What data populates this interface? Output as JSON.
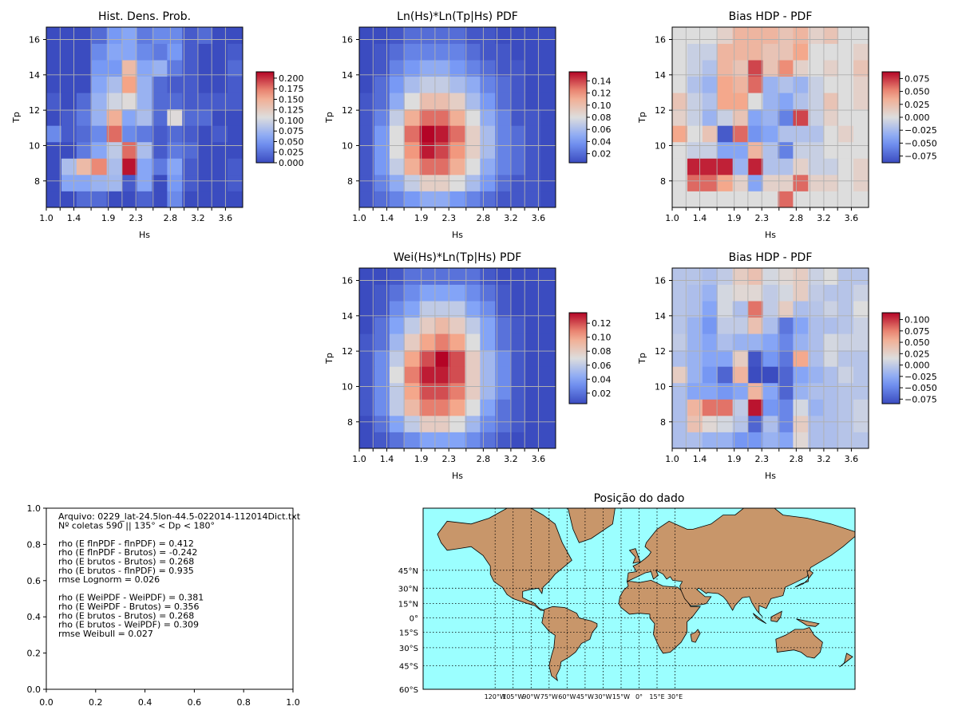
{
  "axes_labels": {
    "x": "Hs",
    "y": "Tp"
  },
  "text_panel": {
    "lines": [
      "Arquivo: 0229_lat-24.5lon-44.5-022014-112014Dict.txt",
      "Nº coletas 590 || 135° < Dp < 180°",
      "",
      "rho (E flnPDF - flnPDF) = 0.412",
      "rho (E flnPDF - Brutos) = -0.242",
      "rho (E brutos - Brutos) = 0.268",
      "rho (E brutos - flnPDF) = 0.935",
      "rmse Lognorm = 0.026",
      "",
      "rho (E WeiPDF - WeiPDF) = 0.381",
      "rho (E WeiPDF - Brutos) = 0.356",
      "rho (E brutos - Brutos) = 0.268",
      "rho (E brutos - WeiPDF) = 0.309",
      "rmse Weibull = 0.027"
    ],
    "xticks": [
      "0.0",
      "0.2",
      "0.4",
      "0.6",
      "0.8",
      "1.0"
    ],
    "yticks": [
      "0.0",
      "0.2",
      "0.4",
      "0.6",
      "0.8",
      "1.0"
    ]
  },
  "map": {
    "title": "Posição do dado",
    "lat_labels": [
      "45°N",
      "30°N",
      "15°N",
      "0°",
      "15°S",
      "30°S",
      "45°S",
      "60°S"
    ],
    "lat_values": [
      45,
      30,
      15,
      0,
      -15,
      -30,
      -45,
      -60
    ],
    "lon_labels": [
      "120°W",
      "105°W",
      "90°W",
      "75°W",
      "60°W",
      "45°W",
      "30°W",
      "15°W",
      "0°",
      "15°E",
      "30°E"
    ],
    "lon_values": [
      -120,
      -105,
      -90,
      -75,
      -60,
      -45,
      -30,
      -15,
      0,
      15,
      30
    ],
    "ocean_color": "#9bffff",
    "land_color": "#c8966a"
  },
  "chart_data": [
    {
      "type": "heatmap",
      "title": "Hist. Dens. Prob.",
      "xlabel": "Hs",
      "ylabel": "Tp",
      "xticks": [
        "1.0",
        "1.4",
        "1.9",
        "2.3",
        "2.8",
        "3.2",
        "3.6"
      ],
      "yticks": [
        "8",
        "10",
        "12",
        "14",
        "16"
      ],
      "ylim": [
        6.5,
        16.7
      ],
      "colorbar_ticks": [
        "0.000",
        "0.025",
        "0.050",
        "0.075",
        "0.100",
        "0.125",
        "0.150",
        "0.175",
        "0.200"
      ],
      "vmin": 0.0,
      "vmax": 0.215,
      "grid": true,
      "colormap": "coolwarm",
      "z": [
        [
          0.0,
          0.0,
          0.02,
          0.02,
          0.0,
          0.0,
          0.015,
          0.0,
          0.04,
          0.0,
          0.0,
          0.0,
          0.0
        ],
        [
          0.0,
          0.06,
          0.06,
          0.07,
          0.075,
          0.01,
          0.06,
          0.0,
          0.05,
          0.01,
          0.0,
          0.0,
          0.01
        ],
        [
          0.0,
          0.08,
          0.14,
          0.17,
          0.08,
          0.21,
          0.06,
          0.03,
          0.06,
          0.01,
          0.0,
          0.0,
          0.01
        ],
        [
          0.0,
          0.0,
          0.03,
          0.06,
          0.09,
          0.18,
          0.08,
          0.01,
          0.03,
          0.02,
          0.0,
          0.0,
          0.0
        ],
        [
          0.04,
          0.01,
          0.02,
          0.04,
          0.18,
          0.04,
          0.03,
          0.01,
          0.02,
          0.01,
          0.0,
          0.01,
          0.0
        ],
        [
          0.0,
          0.01,
          0.03,
          0.07,
          0.15,
          0.06,
          0.08,
          0.02,
          0.11,
          0.02,
          0.02,
          0.0,
          0.0
        ],
        [
          0.01,
          0.0,
          0.02,
          0.07,
          0.1,
          0.11,
          0.07,
          0.02,
          0.02,
          0.01,
          0.01,
          0.01,
          0.01
        ],
        [
          0.0,
          0.0,
          0.0,
          0.06,
          0.08,
          0.16,
          0.07,
          0.02,
          0.01,
          0.01,
          0.0,
          0.0,
          0.01
        ],
        [
          0.0,
          0.0,
          0.0,
          0.05,
          0.05,
          0.14,
          0.06,
          0.07,
          0.03,
          0.01,
          0.0,
          0.0,
          0.02
        ],
        [
          0.0,
          0.0,
          0.0,
          0.04,
          0.06,
          0.06,
          0.04,
          0.03,
          0.05,
          0.01,
          0.0,
          0.0,
          0.01
        ],
        [
          0.0,
          0.0,
          0.0,
          0.02,
          0.05,
          0.06,
          0.03,
          0.04,
          0.04,
          0.01,
          0.02,
          0.0,
          0.0
        ]
      ]
    },
    {
      "type": "heatmap",
      "title": "Ln(Hs)*Ln(Tp|Hs) PDF",
      "xlabel": "Hs",
      "ylabel": "Tp",
      "xticks": [
        "1.0",
        "1.4",
        "1.9",
        "2.3",
        "2.8",
        "3.2",
        "3.6"
      ],
      "yticks": [
        "8",
        "10",
        "12",
        "14",
        "16"
      ],
      "ylim": [
        6.5,
        16.7
      ],
      "colorbar_ticks": [
        "0.02",
        "0.04",
        "0.06",
        "0.08",
        "0.10",
        "0.12",
        "0.14"
      ],
      "vmin": 0.005,
      "vmax": 0.155,
      "grid": true,
      "colormap": "coolwarm",
      "z": [
        [
          0.01,
          0.02,
          0.03,
          0.04,
          0.05,
          0.05,
          0.04,
          0.03,
          0.02,
          0.01,
          0.01,
          0.01,
          0.005
        ],
        [
          0.01,
          0.03,
          0.05,
          0.07,
          0.09,
          0.09,
          0.08,
          0.06,
          0.04,
          0.02,
          0.01,
          0.01,
          0.005
        ],
        [
          0.01,
          0.04,
          0.07,
          0.11,
          0.13,
          0.13,
          0.11,
          0.08,
          0.05,
          0.03,
          0.02,
          0.01,
          0.005
        ],
        [
          0.01,
          0.04,
          0.08,
          0.12,
          0.15,
          0.14,
          0.12,
          0.09,
          0.06,
          0.03,
          0.02,
          0.01,
          0.005
        ],
        [
          0.01,
          0.04,
          0.08,
          0.13,
          0.155,
          0.15,
          0.13,
          0.09,
          0.06,
          0.03,
          0.02,
          0.01,
          0.005
        ],
        [
          0.01,
          0.03,
          0.07,
          0.11,
          0.13,
          0.13,
          0.11,
          0.08,
          0.05,
          0.03,
          0.01,
          0.01,
          0.005
        ],
        [
          0.01,
          0.02,
          0.05,
          0.08,
          0.1,
          0.1,
          0.09,
          0.06,
          0.04,
          0.02,
          0.01,
          0.005,
          0.005
        ],
        [
          0.005,
          0.02,
          0.04,
          0.06,
          0.07,
          0.07,
          0.06,
          0.05,
          0.03,
          0.02,
          0.01,
          0.005,
          0.005
        ],
        [
          0.005,
          0.01,
          0.03,
          0.04,
          0.05,
          0.05,
          0.04,
          0.03,
          0.02,
          0.01,
          0.01,
          0.005,
          0.005
        ],
        [
          0.005,
          0.01,
          0.02,
          0.03,
          0.03,
          0.03,
          0.03,
          0.02,
          0.01,
          0.01,
          0.005,
          0.005,
          0.005
        ],
        [
          0.005,
          0.005,
          0.01,
          0.02,
          0.02,
          0.02,
          0.02,
          0.01,
          0.01,
          0.005,
          0.005,
          0.005,
          0.005
        ]
      ]
    },
    {
      "type": "heatmap",
      "title": "Bias HDP - PDF",
      "xlabel": "Hs",
      "ylabel": "Tp",
      "xticks": [
        "1.0",
        "1.4",
        "1.9",
        "2.3",
        "2.8",
        "3.2",
        "3.6"
      ],
      "yticks": [
        "8",
        "10",
        "12",
        "14",
        "16"
      ],
      "ylim": [
        6.5,
        16.7
      ],
      "colorbar_ticks": [
        "0.075",
        "0.050",
        "0.025",
        "0.000",
        "−0.025",
        "−0.050",
        "−0.075"
      ],
      "vmin": -0.088,
      "vmax": 0.088,
      "grid": true,
      "colormap": "coolwarm",
      "z": [
        [
          0.0,
          0.0,
          0.0,
          0.0,
          0.0,
          0.0,
          0.0,
          0.06,
          0.0,
          0.0,
          0.0,
          0.0,
          0.0
        ],
        [
          0.0,
          0.06,
          0.06,
          0.04,
          0.01,
          -0.04,
          0.01,
          0.01,
          0.06,
          0.01,
          0.01,
          0.0,
          0.01
        ],
        [
          0.0,
          0.08,
          0.08,
          0.08,
          -0.03,
          0.08,
          -0.02,
          -0.02,
          0.01,
          -0.01,
          -0.01,
          0.0,
          0.01
        ],
        [
          0.0,
          -0.01,
          -0.01,
          -0.04,
          -0.04,
          0.03,
          -0.02,
          -0.06,
          -0.01,
          -0.01,
          0.0,
          0.0,
          0.0
        ],
        [
          0.04,
          0.0,
          0.02,
          -0.08,
          0.06,
          -0.05,
          -0.04,
          -0.02,
          -0.02,
          -0.02,
          0.0,
          0.01,
          0.0
        ],
        [
          0.01,
          -0.01,
          -0.03,
          -0.01,
          0.02,
          -0.04,
          -0.03,
          -0.06,
          0.07,
          -0.01,
          0.01,
          0.0,
          0.0
        ],
        [
          0.02,
          -0.01,
          -0.02,
          0.04,
          0.04,
          0.0,
          -0.03,
          -0.04,
          -0.02,
          -0.01,
          0.02,
          0.0,
          0.01
        ],
        [
          0.0,
          -0.02,
          -0.03,
          0.04,
          0.03,
          0.06,
          -0.03,
          -0.02,
          -0.03,
          -0.01,
          0.0,
          0.0,
          0.01
        ],
        [
          0.0,
          -0.01,
          -0.02,
          0.03,
          0.02,
          0.07,
          0.02,
          0.05,
          0.01,
          0.0,
          0.01,
          0.0,
          0.02
        ],
        [
          0.0,
          -0.01,
          -0.01,
          0.03,
          0.03,
          0.03,
          0.02,
          0.02,
          0.04,
          0.0,
          0.0,
          0.0,
          0.01
        ],
        [
          0.0,
          0.0,
          0.0,
          0.01,
          0.03,
          0.03,
          0.03,
          0.02,
          0.03,
          0.01,
          0.02,
          0.0,
          0.0
        ]
      ]
    },
    {
      "type": "heatmap",
      "title": "Wei(Hs)*Ln(Tp|Hs) PDF",
      "xlabel": "Hs",
      "ylabel": "Tp",
      "xticks": [
        "1.0",
        "1.4",
        "1.9",
        "2.3",
        "2.8",
        "3.2",
        "3.6"
      ],
      "yticks": [
        "8",
        "10",
        "12",
        "14",
        "16"
      ],
      "ylim": [
        6.5,
        16.7
      ],
      "colorbar_ticks": [
        "0.02",
        "0.04",
        "0.06",
        "0.08",
        "0.10",
        "0.12"
      ],
      "vmin": 0.005,
      "vmax": 0.135,
      "grid": true,
      "colormap": "coolwarm",
      "z": [
        [
          0.005,
          0.01,
          0.02,
          0.03,
          0.04,
          0.04,
          0.04,
          0.03,
          0.02,
          0.01,
          0.005,
          0.005,
          0.005
        ],
        [
          0.005,
          0.02,
          0.04,
          0.06,
          0.08,
          0.08,
          0.07,
          0.05,
          0.03,
          0.02,
          0.01,
          0.005,
          0.005
        ],
        [
          0.01,
          0.03,
          0.06,
          0.09,
          0.11,
          0.11,
          0.1,
          0.07,
          0.04,
          0.02,
          0.01,
          0.005,
          0.005
        ],
        [
          0.01,
          0.03,
          0.06,
          0.1,
          0.12,
          0.12,
          0.11,
          0.08,
          0.05,
          0.03,
          0.01,
          0.005,
          0.005
        ],
        [
          0.01,
          0.03,
          0.07,
          0.11,
          0.13,
          0.13,
          0.12,
          0.08,
          0.05,
          0.03,
          0.01,
          0.005,
          0.005
        ],
        [
          0.01,
          0.03,
          0.06,
          0.1,
          0.12,
          0.135,
          0.12,
          0.08,
          0.05,
          0.03,
          0.01,
          0.005,
          0.005
        ],
        [
          0.01,
          0.02,
          0.05,
          0.08,
          0.1,
          0.11,
          0.1,
          0.07,
          0.04,
          0.02,
          0.01,
          0.005,
          0.005
        ],
        [
          0.005,
          0.02,
          0.04,
          0.06,
          0.08,
          0.09,
          0.08,
          0.06,
          0.04,
          0.02,
          0.01,
          0.005,
          0.005
        ],
        [
          0.005,
          0.01,
          0.03,
          0.04,
          0.06,
          0.06,
          0.06,
          0.04,
          0.03,
          0.01,
          0.005,
          0.005,
          0.005
        ],
        [
          0.005,
          0.01,
          0.02,
          0.03,
          0.04,
          0.04,
          0.04,
          0.03,
          0.02,
          0.01,
          0.005,
          0.005,
          0.005
        ],
        [
          0.005,
          0.005,
          0.01,
          0.02,
          0.02,
          0.02,
          0.02,
          0.02,
          0.01,
          0.005,
          0.005,
          0.005,
          0.005
        ]
      ]
    },
    {
      "type": "heatmap",
      "title": "Bias HDP - PDF",
      "xlabel": "Hs",
      "ylabel": "Tp",
      "xticks": [
        "1.0",
        "1.4",
        "1.9",
        "2.3",
        "2.8",
        "3.2",
        "3.6"
      ],
      "yticks": [
        "8",
        "10",
        "12",
        "14",
        "16"
      ],
      "ylim": [
        6.5,
        16.7
      ],
      "colorbar_ticks": [
        "0.100",
        "0.075",
        "0.050",
        "0.025",
        "0.000",
        "−0.025",
        "−0.050",
        "−0.075"
      ],
      "vmin": -0.085,
      "vmax": 0.115,
      "grid": true,
      "colormap": "coolwarm",
      "z": [
        [
          -0.01,
          -0.01,
          -0.02,
          -0.02,
          -0.04,
          -0.04,
          -0.02,
          -0.03,
          0.02,
          -0.01,
          -0.01,
          -0.005,
          -0.005
        ],
        [
          -0.01,
          0.04,
          0.02,
          0.01,
          -0.005,
          -0.07,
          -0.01,
          -0.05,
          0.03,
          -0.01,
          -0.01,
          -0.005,
          0.005
        ],
        [
          -0.01,
          0.05,
          0.08,
          0.08,
          0.0,
          0.11,
          -0.04,
          -0.05,
          0.01,
          -0.02,
          -0.01,
          -0.005,
          0.005
        ],
        [
          -0.01,
          -0.03,
          -0.03,
          -0.04,
          -0.03,
          0.05,
          -0.03,
          -0.07,
          -0.02,
          -0.01,
          -0.01,
          -0.005,
          -0.005
        ],
        [
          0.03,
          -0.02,
          -0.04,
          -0.07,
          0.05,
          -0.09,
          -0.09,
          -0.07,
          -0.03,
          -0.02,
          -0.01,
          0.005,
          -0.005
        ],
        [
          -0.01,
          -0.02,
          -0.03,
          -0.03,
          0.03,
          -0.08,
          -0.04,
          -0.06,
          0.06,
          -0.01,
          0.01,
          -0.005,
          -0.005
        ],
        [
          0.0,
          -0.02,
          -0.03,
          -0.01,
          -0.02,
          -0.02,
          -0.03,
          -0.05,
          -0.02,
          -0.01,
          0.01,
          0.005,
          0.005
        ],
        [
          -0.005,
          -0.02,
          -0.04,
          0.0,
          0.0,
          0.04,
          -0.01,
          -0.06,
          -0.03,
          -0.01,
          -0.01,
          -0.005,
          0.005
        ],
        [
          -0.005,
          -0.01,
          -0.03,
          0.01,
          -0.01,
          0.08,
          0.0,
          0.03,
          -0.01,
          -0.005,
          0.005,
          -0.005,
          0.015
        ],
        [
          -0.005,
          -0.01,
          -0.02,
          0.01,
          0.02,
          0.02,
          0.0,
          0.01,
          0.03,
          0.0,
          -0.005,
          -0.005,
          0.005
        ],
        [
          -0.005,
          -0.005,
          -0.01,
          0.0,
          0.03,
          0.04,
          0.01,
          0.02,
          0.03,
          0.005,
          0.015,
          -0.005,
          -0.005
        ]
      ]
    }
  ]
}
